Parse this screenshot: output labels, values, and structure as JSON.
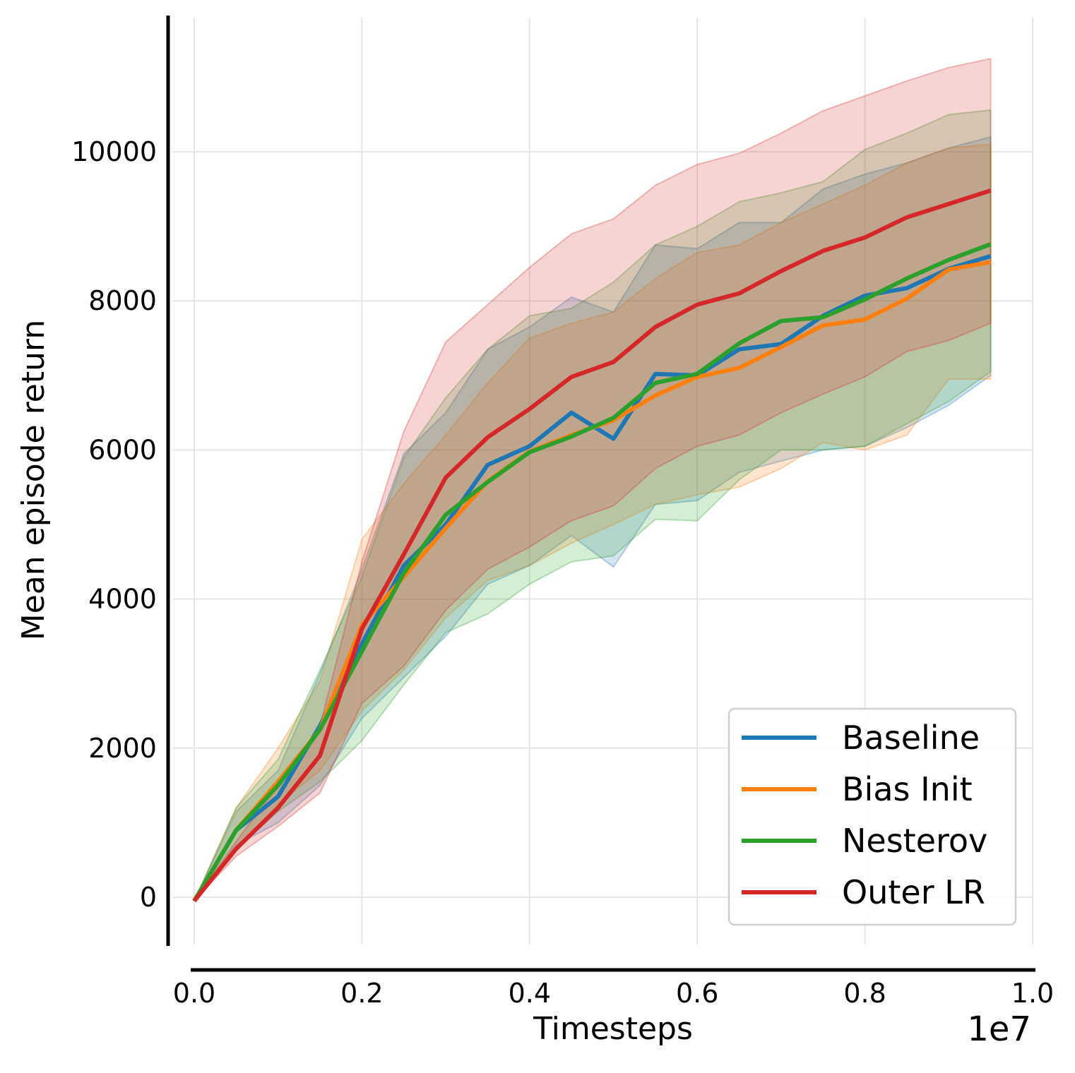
{
  "chart_data": {
    "type": "line",
    "xlabel": "Timesteps",
    "ylabel": "Mean episode return",
    "x_offset_label": "1e7",
    "xlim": [
      0.0,
      1.0
    ],
    "ylim": [
      -650,
      11700
    ],
    "x_ticks": [
      "0.0",
      "0.2",
      "0.4",
      "0.6",
      "0.8",
      "1.0"
    ],
    "y_ticks": [
      "0",
      "2000",
      "4000",
      "6000",
      "8000",
      "10000"
    ],
    "grid": true,
    "legend_position": "bottom-right",
    "x": [
      0.0,
      0.05,
      0.1,
      0.15,
      0.2,
      0.25,
      0.3,
      0.35,
      0.4,
      0.45,
      0.5,
      0.55,
      0.6,
      0.65,
      0.7,
      0.75,
      0.8,
      0.85,
      0.9,
      0.95
    ],
    "series": [
      {
        "name": "Baseline",
        "color": "#1f77b4",
        "values": [
          -50,
          900,
          1350,
          2300,
          3400,
          4450,
          5000,
          5800,
          6050,
          6500,
          6150,
          7020,
          7000,
          7350,
          7420,
          7800,
          8070,
          8170,
          8430,
          8600
        ],
        "lower": [
          -50,
          700,
          1000,
          1500,
          2400,
          2950,
          3500,
          4200,
          4450,
          4850,
          4430,
          5270,
          5320,
          5700,
          5850,
          6000,
          6050,
          6300,
          6600,
          7000
        ],
        "upper": [
          -50,
          1150,
          1700,
          3000,
          4400,
          5950,
          6500,
          7350,
          7650,
          8050,
          7850,
          8750,
          8700,
          9050,
          9050,
          9500,
          9700,
          9850,
          10050,
          10200
        ]
      },
      {
        "name": "Bias Init",
        "color": "#ff7f0e",
        "values": [
          -50,
          900,
          1550,
          2250,
          3650,
          4300,
          4950,
          5580,
          5980,
          6200,
          6400,
          6730,
          6980,
          7100,
          7380,
          7670,
          7750,
          8030,
          8420,
          8520
        ],
        "lower": [
          -50,
          650,
          1250,
          1700,
          2500,
          3050,
          3750,
          4250,
          4450,
          4750,
          5000,
          5270,
          5400,
          5500,
          5750,
          6100,
          6000,
          6200,
          6950,
          6950
        ],
        "upper": [
          -50,
          1200,
          2000,
          2900,
          4800,
          5550,
          6200,
          6900,
          7500,
          7700,
          7850,
          8300,
          8650,
          8750,
          9050,
          9300,
          9550,
          9850,
          10050,
          10100
        ]
      },
      {
        "name": "Nesterov",
        "color": "#2ca02c",
        "values": [
          -50,
          900,
          1500,
          2250,
          3300,
          4350,
          5130,
          5570,
          5970,
          6180,
          6430,
          6900,
          7020,
          7430,
          7730,
          7780,
          8020,
          8300,
          8550,
          8760
        ],
        "lower": [
          -50,
          650,
          1150,
          1550,
          2100,
          2850,
          3550,
          3800,
          4200,
          4500,
          4580,
          5070,
          5050,
          5600,
          6000,
          6000,
          6050,
          6350,
          6650,
          7050
        ],
        "upper": [
          -50,
          1200,
          1850,
          3050,
          4300,
          5900,
          6700,
          7350,
          7800,
          7900,
          8250,
          8750,
          9000,
          9330,
          9450,
          9600,
          10030,
          10250,
          10500,
          10560
        ]
      },
      {
        "name": "Outer LR",
        "color": "#d62728",
        "values": [
          -50,
          650,
          1200,
          1900,
          3600,
          4600,
          5630,
          6170,
          6550,
          6980,
          7180,
          7650,
          7950,
          8100,
          8400,
          8670,
          8850,
          9120,
          9300,
          9480
        ],
        "lower": [
          -50,
          550,
          950,
          1400,
          2600,
          3100,
          3850,
          4400,
          4700,
          5050,
          5250,
          5750,
          6050,
          6200,
          6500,
          6750,
          6980,
          7320,
          7470,
          7700
        ],
        "upper": [
          -50,
          750,
          1500,
          2300,
          4500,
          6250,
          7450,
          7950,
          8450,
          8900,
          9100,
          9550,
          9830,
          9980,
          10250,
          10550,
          10750,
          10950,
          11130,
          11250
        ]
      }
    ]
  }
}
